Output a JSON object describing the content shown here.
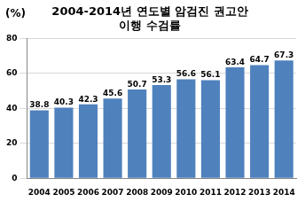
{
  "chart_data": {
    "type": "bar",
    "title": [
      "2004-2014년 연도별 암검진 권고안",
      "이행 수검률"
    ],
    "y_label": "(%)",
    "categories": [
      "2004",
      "2005",
      "2006",
      "2007",
      "2008",
      "2009",
      "2010",
      "2011",
      "2012",
      "2013",
      "2014"
    ],
    "values": [
      38.8,
      40.3,
      42.3,
      45.6,
      50.7,
      53.3,
      56.6,
      56.1,
      63.4,
      64.7,
      67.3
    ],
    "color": "#4f81bd",
    "ylim": [
      0,
      80
    ],
    "yticks": [
      0,
      20,
      40,
      60,
      80
    ],
    "grid": true,
    "data_labels": true
  }
}
